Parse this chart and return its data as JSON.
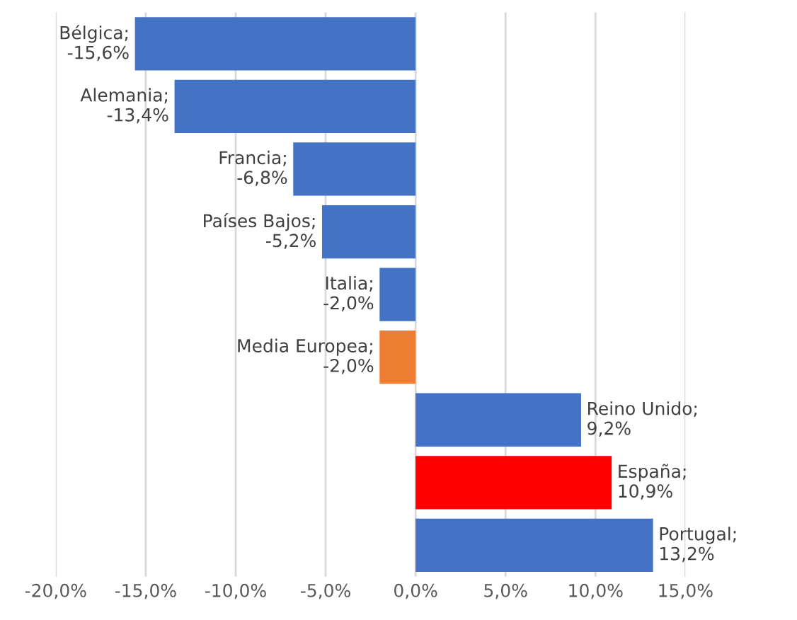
{
  "chart_data": {
    "type": "bar",
    "orientation": "horizontal",
    "categories": [
      null,
      null,
      null,
      null,
      null,
      null,
      null,
      null,
      null
    ],
    "values": [
      -15.6,
      -13.4,
      -6.8,
      -5.2,
      -2.0,
      -2.0,
      9.2,
      10.9,
      13.2
    ],
    "colors": [
      "#4472c4",
      "#4472c4",
      "#4472c4",
      "#4472c4",
      "#4472c4",
      "#ed7d31",
      "#4472c4",
      "#ff0000",
      "#4472c4"
    ],
    "value_labels": [
      "Bélgica; -15,6%",
      "Alemania; -13,4%",
      "Francia; -6,8%",
      "Países Bajos; -5,2%",
      "Italia; -2,0%",
      "Media Europea; -2,0%",
      "Reino Unido; 9,2%",
      "España; 10,9%",
      "Portugal; 13,2%"
    ],
    "xlim": [
      -20,
      15
    ],
    "xticks": [
      {
        "value": -20,
        "label": "-20,0%"
      },
      {
        "value": -15,
        "label": "-15,0%"
      },
      {
        "value": -10,
        "label": "-10,0%"
      },
      {
        "value": -5,
        "label": "-5,0%"
      },
      {
        "value": 0,
        "label": "0,0%"
      },
      {
        "value": 5,
        "label": "5,0%"
      },
      {
        "value": 10,
        "label": "10,0%"
      },
      {
        "value": 15,
        "label": "15,0%"
      }
    ],
    "grid": "x",
    "tick_labels": "x"
  }
}
